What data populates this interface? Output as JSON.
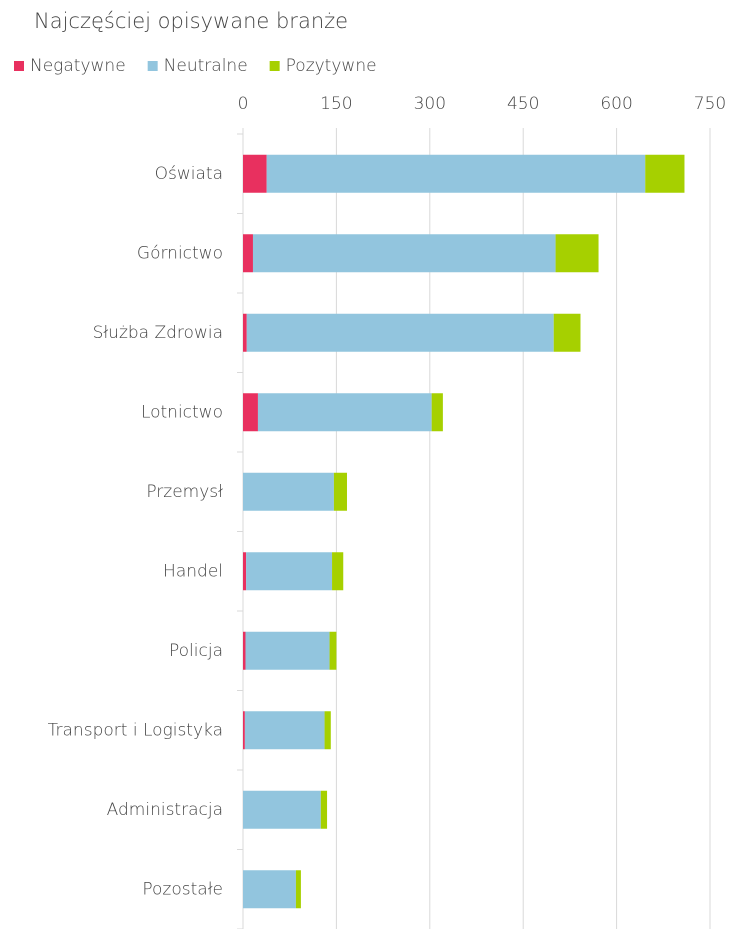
{
  "chart_data": {
    "type": "bar",
    "orientation": "horizontal",
    "stacked": true,
    "title": "Najczęściej opisywane branże",
    "categories": [
      "Oświata",
      "Górnictwo",
      "Służba Zdrowia",
      "Lotnictwo",
      "Przemysł",
      "Handel",
      "Policja",
      "Transport i Logistyka",
      "Administracja",
      "Pozostałe"
    ],
    "series": [
      {
        "name": "Negatywne",
        "color": "#e8305f",
        "values": [
          38,
          16,
          6,
          24,
          0,
          5,
          4,
          3,
          0,
          0
        ]
      },
      {
        "name": "Neutralne",
        "color": "#92c5de",
        "values": [
          608,
          486,
          493,
          279,
          146,
          138,
          135,
          128,
          125,
          85
        ]
      },
      {
        "name": "Pozytywne",
        "color": "#a6d000",
        "values": [
          63,
          69,
          43,
          18,
          21,
          18,
          11,
          10,
          10,
          8
        ]
      }
    ],
    "xlim": [
      0,
      750
    ],
    "xticks": [
      0,
      150,
      300,
      450,
      600,
      750
    ],
    "grid": true,
    "legend": "top"
  }
}
